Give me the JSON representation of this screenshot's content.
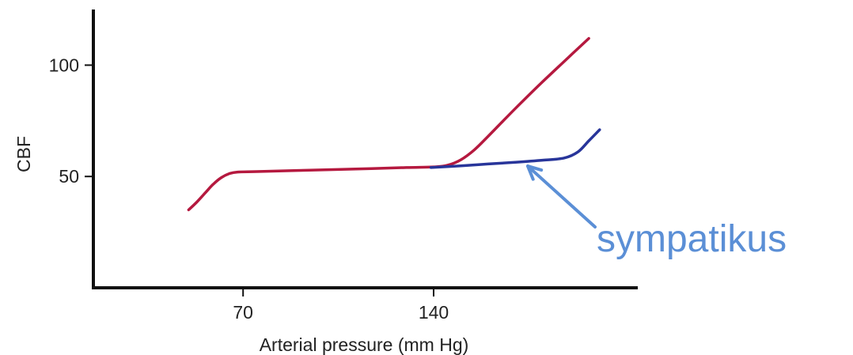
{
  "chart_data": {
    "type": "line",
    "title": "",
    "xlabel": "Arterial pressure (mm Hg)",
    "ylabel": "CBF",
    "xlim": [
      15,
      215
    ],
    "ylim": [
      0,
      125
    ],
    "x_ticks": [
      {
        "value": 70,
        "label": "70"
      },
      {
        "value": 140,
        "label": "140"
      }
    ],
    "y_ticks": [
      {
        "value": 100,
        "label": "100"
      },
      {
        "value": 50,
        "label": "50"
      }
    ],
    "grid": false,
    "legend": "none",
    "series": [
      {
        "color": "#b5193f",
        "points": [
          [
            50,
            35
          ],
          [
            53,
            38.5
          ],
          [
            56,
            42.5
          ],
          [
            59,
            46.5
          ],
          [
            62,
            49.5
          ],
          [
            65,
            51.3
          ],
          [
            68,
            52
          ],
          [
            75,
            52.2
          ],
          [
            90,
            52.7
          ],
          [
            110,
            53.3
          ],
          [
            130,
            54
          ],
          [
            140,
            54.3
          ],
          [
            145,
            55
          ],
          [
            150,
            57.5
          ],
          [
            155,
            62
          ],
          [
            160,
            68
          ],
          [
            170,
            80.5
          ],
          [
            180,
            92.5
          ],
          [
            190,
            104
          ],
          [
            197,
            112
          ]
        ]
      },
      {
        "color": "#28359a",
        "points": [
          [
            139,
            54
          ],
          [
            150,
            54.8
          ],
          [
            160,
            55.6
          ],
          [
            170,
            56.4
          ],
          [
            180,
            57.3
          ],
          [
            188,
            58.3
          ],
          [
            193,
            61
          ],
          [
            197,
            66
          ],
          [
            201,
            71
          ]
        ]
      }
    ],
    "annotations": [
      {
        "text": "sympatikus",
        "color": "#5b8fd6",
        "arrow_target": [
          174,
          56.8
        ]
      }
    ]
  }
}
